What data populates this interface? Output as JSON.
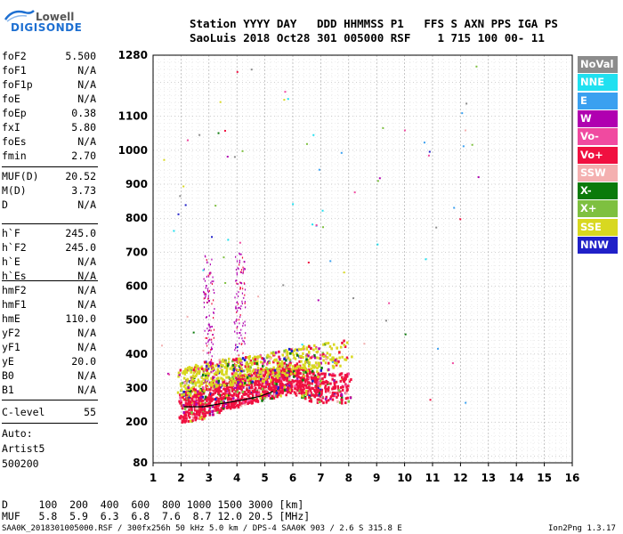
{
  "logo": {
    "line1": "Lowell",
    "line2": "DIGISONDE"
  },
  "header": {
    "line1": "Station YYYY DAY   DDD HHMMSS P1   FFS S AXN PPS IGA PS",
    "line2": "SaoLuis 2018 Oct28 301 005000 RSF    1 715 100 00- 11"
  },
  "params_group1": [
    {
      "label": "foF2",
      "value": "5.500"
    },
    {
      "label": "foF1",
      "value": "N/A"
    },
    {
      "label": "foF1p",
      "value": "N/A"
    },
    {
      "label": "foE",
      "value": "N/A"
    },
    {
      "label": "foEp",
      "value": "0.38"
    },
    {
      "label": "fxI",
      "value": "5.80"
    },
    {
      "label": "foEs",
      "value": "N/A"
    },
    {
      "label": "fmin",
      "value": "2.70"
    }
  ],
  "params_group2": [
    {
      "label": "MUF(D)",
      "value": "20.52"
    },
    {
      "label": "M(D)",
      "value": "3.73"
    },
    {
      "label": "D",
      "value": "N/A"
    }
  ],
  "params_group3": [
    {
      "label": "h`F",
      "value": "245.0"
    },
    {
      "label": "h`F2",
      "value": "245.0"
    },
    {
      "label": "h`E",
      "value": "N/A"
    },
    {
      "label": "h`Es",
      "value": "N/A"
    }
  ],
  "params_group4": [
    {
      "label": "hmF2",
      "value": "N/A"
    },
    {
      "label": "hmF1",
      "value": "N/A"
    },
    {
      "label": "hmE",
      "value": "110.0"
    },
    {
      "label": "yF2",
      "value": "N/A"
    },
    {
      "label": "yF1",
      "value": "N/A"
    },
    {
      "label": "yE",
      "value": "20.0"
    },
    {
      "label": "B0",
      "value": "N/A"
    },
    {
      "label": "B1",
      "value": "N/A"
    }
  ],
  "params_group5": [
    {
      "label": "C-level",
      "value": "55"
    }
  ],
  "auto": {
    "line1": "Auto:",
    "line2": "Artist5",
    "line3": "500200"
  },
  "legend": [
    {
      "label": "NoVal",
      "color": "#8c8c8c"
    },
    {
      "label": "NNE",
      "color": "#20e0f0"
    },
    {
      "label": "E",
      "color": "#3aa0f0"
    },
    {
      "label": "W",
      "color": "#b000b0"
    },
    {
      "label": "Vo-",
      "color": "#f04aa0"
    },
    {
      "label": "Vo+",
      "color": "#f01040"
    },
    {
      "label": "SSW",
      "color": "#f4b0b0"
    },
    {
      "label": "X-",
      "color": "#0a7a0a"
    },
    {
      "label": "X+",
      "color": "#7ec040"
    },
    {
      "label": "SSE",
      "color": "#d8d820"
    },
    {
      "label": "NNW",
      "color": "#2020c8"
    }
  ],
  "chart_data": {
    "type": "scatter",
    "xlim": [
      1,
      16
    ],
    "ylim": [
      80,
      1280
    ],
    "xticks": [
      "1",
      "2",
      "3",
      "4",
      "5",
      "6",
      "7",
      "8",
      "9",
      "10",
      "11",
      "12",
      "13",
      "14",
      "15",
      "16"
    ],
    "yticks": [
      "80",
      "200",
      "300",
      "400",
      "500",
      "600",
      "700",
      "800",
      "900",
      "1000",
      "1100",
      "1280"
    ],
    "grid": true,
    "legend_position": "right",
    "traces": [
      {
        "name": "Vo+",
        "approx_points": [
          [
            2.0,
            240
          ],
          [
            2.5,
            250
          ],
          [
            3.0,
            260
          ],
          [
            3.5,
            275
          ],
          [
            4.0,
            290
          ],
          [
            4.5,
            300
          ],
          [
            5.0,
            310
          ],
          [
            5.5,
            320
          ],
          [
            6.0,
            330
          ],
          [
            6.5,
            310
          ],
          [
            7.0,
            300
          ],
          [
            8.0,
            300
          ]
        ]
      },
      {
        "name": "SSE",
        "approx_points": [
          [
            2.0,
            310
          ],
          [
            3.0,
            340
          ],
          [
            4.0,
            350
          ],
          [
            5.0,
            360
          ],
          [
            6.0,
            380
          ],
          [
            8.0,
            400
          ]
        ]
      }
    ],
    "profile_curve": [
      [
        2.1,
        245
      ],
      [
        2.8,
        245
      ],
      [
        3.5,
        255
      ],
      [
        4.2,
        265
      ],
      [
        4.8,
        275
      ],
      [
        5.3,
        290
      ]
    ]
  },
  "bottom": {
    "d_row": "D     100  200  400  600  800 1000 1500 3000 [km]",
    "muf_row": "MUF   5.8  5.9  6.3  6.8  7.6  8.7 12.0 20.5 [MHz]"
  },
  "footer": {
    "left": "SAA0K_2018301005000.RSF / 300fx256h 50 kHz 5.0 km / DPS-4 SAA0K 903 / 2.6 S 315.8 E",
    "right": "Ion2Png 1.3.17"
  }
}
